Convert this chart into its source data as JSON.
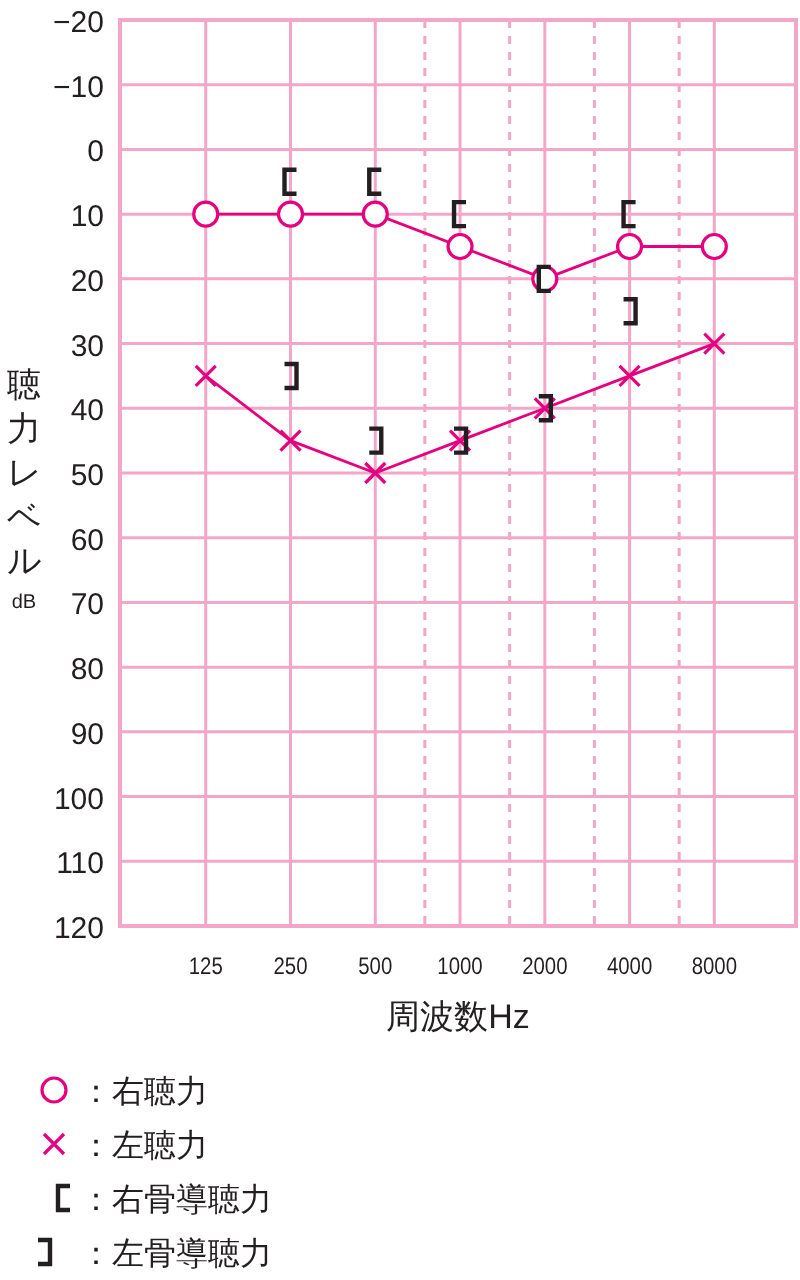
{
  "chart_data": {
    "type": "line",
    "xlabel": "周波数Hz",
    "ylabel": "聴力レベル$_{dB}$",
    "log": "x",
    "x": [
      125,
      250,
      500,
      1000,
      2000,
      4000,
      8000
    ],
    "xlim": [
      62,
      15600
    ],
    "xticks": [
      125,
      250,
      500,
      1000,
      2000,
      4000,
      8000
    ],
    "ylim": [
      120,
      -20
    ],
    "yticks": [
      {
        "value": -20,
        "label": "−20"
      },
      {
        "value": -10,
        "label": "−10"
      },
      0,
      10,
      20,
      30,
      40,
      50,
      60,
      70,
      80,
      90,
      100,
      110,
      120
    ],
    "grid": true,
    "legend": "bottom",
    "ref_lines": [
      {
        "axis": "x",
        "value": 750,
        "line_style": "dashed",
        "color": "#f4a6c8"
      },
      {
        "axis": "x",
        "value": 1500,
        "line_style": "dashed",
        "color": "#f4a6c8"
      },
      {
        "axis": "x",
        "value": 3000,
        "line_style": "dashed",
        "color": "#f4a6c8"
      },
      {
        "axis": "x",
        "value": 6000,
        "line_style": "dashed",
        "color": "#f4a6c8"
      }
    ],
    "series": [
      {
        "name": "：右聴力",
        "marker": "circle",
        "color": "#e4007f",
        "values": [
          10,
          10,
          10,
          15,
          20,
          15,
          15
        ]
      },
      {
        "name": "：左聴力",
        "marker": "cross",
        "color": "#e4007f",
        "values": [
          35,
          45,
          50,
          45,
          40,
          35,
          30
        ]
      },
      {
        "name": "：右骨導聴力",
        "type": "scatter",
        "color": "#231f20",
        "x": [
          250,
          500,
          1000,
          2000,
          4000
        ],
        "values": [
          5,
          5,
          10,
          20,
          10
        ]
      },
      {
        "name": "：左骨導聴力",
        "type": "scatter",
        "color": "#231f20",
        "x": [
          250,
          500,
          1000,
          2000,
          4000
        ],
        "values": [
          35,
          45,
          45,
          40,
          25
        ]
      }
    ]
  }
}
